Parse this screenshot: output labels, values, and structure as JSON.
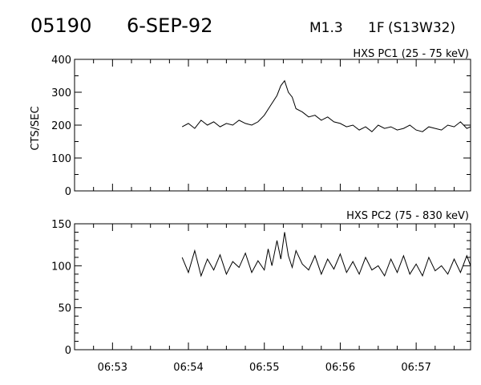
{
  "header": {
    "event_id": "05190",
    "date": "6-SEP-92",
    "goes_class": "M1.3",
    "h_alpha": "1F",
    "location": "(S13W32)"
  },
  "chart_data": [
    {
      "type": "line",
      "title": "HXS PC1 (25 - 75 keV)",
      "ylabel": "CTS/SEC",
      "xlabel": "",
      "ylim": [
        0,
        400
      ],
      "yticks": [
        0,
        100,
        200,
        300,
        400
      ],
      "xlim": [
        "06:52:30",
        "06:57:43"
      ],
      "xticks": [
        "06:53",
        "06:54",
        "06:55",
        "06:56",
        "06:57"
      ],
      "grid": false,
      "series": [
        {
          "x": [
            "06:53:55",
            "06:54:00",
            "06:54:05",
            "06:54:10",
            "06:54:15",
            "06:54:20",
            "06:54:25",
            "06:54:30",
            "06:54:35",
            "06:54:40",
            "06:54:45",
            "06:54:50",
            "06:54:55",
            "06:55:00",
            "06:55:05",
            "06:55:10",
            "06:55:13",
            "06:55:16",
            "06:55:19",
            "06:55:22",
            "06:55:25",
            "06:55:30",
            "06:55:35",
            "06:55:40",
            "06:55:45",
            "06:55:50",
            "06:55:55",
            "06:56:00",
            "06:56:05",
            "06:56:10",
            "06:56:15",
            "06:56:20",
            "06:56:25",
            "06:56:30",
            "06:56:35",
            "06:56:40",
            "06:56:45",
            "06:56:50",
            "06:56:55",
            "06:57:00",
            "06:57:05",
            "06:57:10",
            "06:57:15",
            "06:57:20",
            "06:57:25",
            "06:57:30",
            "06:57:35",
            "06:57:40",
            "06:57:43"
          ],
          "values": [
            195,
            205,
            190,
            215,
            200,
            210,
            195,
            205,
            200,
            215,
            205,
            200,
            210,
            230,
            260,
            290,
            320,
            335,
            300,
            285,
            250,
            240,
            225,
            230,
            215,
            225,
            210,
            205,
            195,
            200,
            185,
            195,
            180,
            200,
            190,
            195,
            185,
            190,
            200,
            185,
            180,
            195,
            190,
            185,
            200,
            195,
            210,
            190,
            195
          ]
        }
      ]
    },
    {
      "type": "line",
      "title": "HXS PC2 (75 - 830 keV)",
      "ylabel": "",
      "xlabel": "",
      "ylim": [
        0,
        150
      ],
      "yticks": [
        0,
        50,
        100,
        150
      ],
      "xlim": [
        "06:52:30",
        "06:57:43"
      ],
      "xticks": [
        "06:53",
        "06:54",
        "06:55",
        "06:56",
        "06:57"
      ],
      "grid": false,
      "series": [
        {
          "x": [
            "06:53:55",
            "06:54:00",
            "06:54:05",
            "06:54:10",
            "06:54:15",
            "06:54:20",
            "06:54:25",
            "06:54:30",
            "06:54:35",
            "06:54:40",
            "06:54:45",
            "06:54:50",
            "06:54:55",
            "06:55:00",
            "06:55:03",
            "06:55:06",
            "06:55:10",
            "06:55:13",
            "06:55:16",
            "06:55:19",
            "06:55:22",
            "06:55:25",
            "06:55:30",
            "06:55:35",
            "06:55:40",
            "06:55:45",
            "06:55:50",
            "06:55:55",
            "06:56:00",
            "06:56:05",
            "06:56:10",
            "06:56:15",
            "06:56:20",
            "06:56:25",
            "06:56:30",
            "06:56:35",
            "06:56:40",
            "06:56:45",
            "06:56:50",
            "06:56:55",
            "06:57:00",
            "06:57:05",
            "06:57:10",
            "06:57:15",
            "06:57:20",
            "06:57:25",
            "06:57:30",
            "06:57:35",
            "06:57:40",
            "06:57:43"
          ],
          "values": [
            110,
            92,
            118,
            88,
            108,
            95,
            113,
            90,
            105,
            98,
            115,
            92,
            106,
            95,
            120,
            100,
            130,
            108,
            140,
            112,
            98,
            118,
            102,
            95,
            112,
            90,
            108,
            96,
            114,
            92,
            105,
            90,
            110,
            95,
            100,
            88,
            108,
            92,
            112,
            90,
            102,
            88,
            110,
            94,
            100,
            90,
            108,
            92,
            112,
            100
          ]
        }
      ]
    }
  ]
}
